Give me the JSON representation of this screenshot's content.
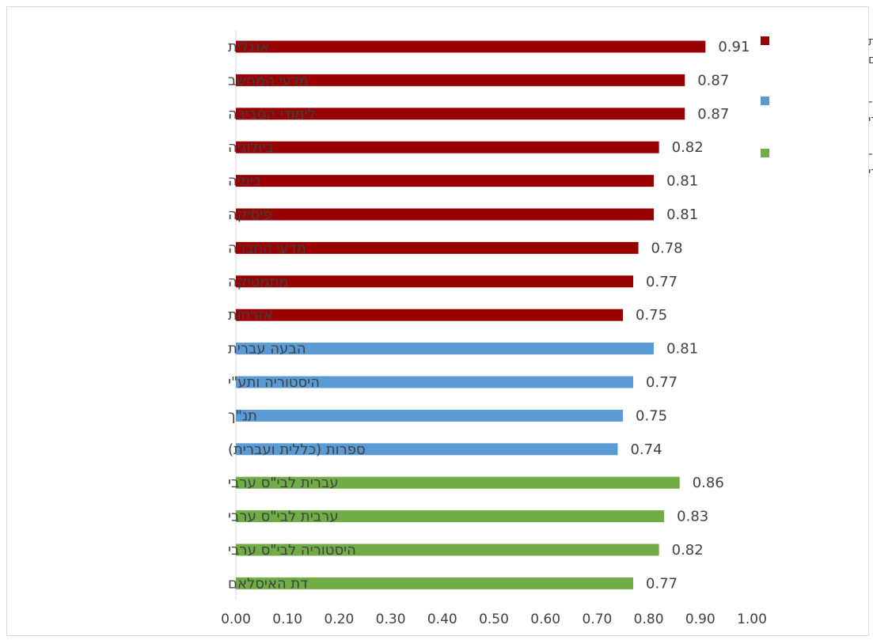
{
  "chart_data": {
    "type": "bar",
    "orientation": "horizontal",
    "categories": [
      "אנגלית",
      "מדעי המחשב",
      "לימודי הסביבה",
      "ביולוגיה",
      "כימיה",
      "פיסיקה",
      "מדעי החברה",
      "מתמטיקה",
      "אזרחות",
      "הבעה עברית",
      "היסטוריה ותע\"י",
      "תנ\"ך",
      "ספרות (כללית ועברית)",
      "עברית לבי\"ס ערבי",
      "ערבית לבי\"ס ערבי",
      "היסטוריה לבי\"ס ערבי",
      "דת האיסלאם"
    ],
    "values": [
      0.91,
      0.87,
      0.87,
      0.82,
      0.81,
      0.81,
      0.78,
      0.77,
      0.75,
      0.81,
      0.77,
      0.75,
      0.74,
      0.86,
      0.83,
      0.82,
      0.77
    ],
    "value_labels": [
      "0.91",
      "0.87",
      "0.87",
      "0.82",
      "0.81",
      "0.81",
      "0.78",
      "0.77",
      "0.75",
      "0.81",
      "0.77",
      "0.75",
      "0.74",
      "0.86",
      "0.83",
      "0.82",
      "0.77"
    ],
    "groups": [
      0,
      0,
      0,
      0,
      0,
      0,
      0,
      0,
      0,
      1,
      1,
      1,
      1,
      2,
      2,
      2,
      2
    ],
    "series": [
      {
        "name": "מקצועות משותפים",
        "name_lines": [
          "מקצועות",
          "משותפים"
        ],
        "color": "#990000"
      },
      {
        "name": "מקצועות מגזר-שפה יהודי",
        "name_lines": [
          "מקצועות מגזר-",
          "שפה יהודי"
        ],
        "color": "#5b9bd5"
      },
      {
        "name": "מקצועות מגזר-שפה לא יהודי",
        "name_lines": [
          "מקצועות מגזר-",
          "שפה לא יהודי"
        ],
        "color": "#70ad47"
      }
    ],
    "xlim": [
      0,
      1.0
    ],
    "x_ticks": [
      "0.00",
      "0.10",
      "0.20",
      "0.30",
      "0.40",
      "0.50",
      "0.60",
      "0.70",
      "0.80",
      "0.90",
      "1.00"
    ],
    "grid": false,
    "legend_position": "top-right",
    "title": "",
    "xlabel": "",
    "ylabel": ""
  }
}
